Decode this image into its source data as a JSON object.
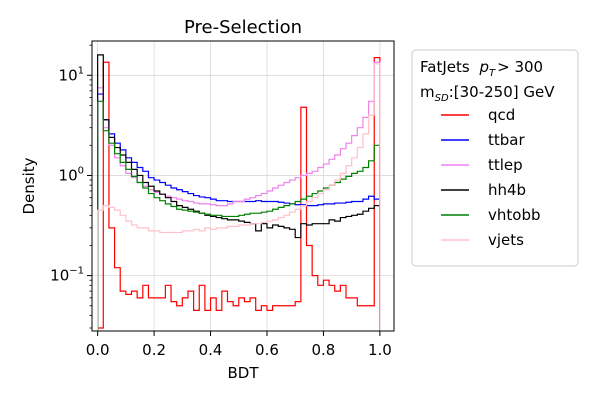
{
  "chart_data": {
    "type": "line",
    "subtype": "step-histogram",
    "title": "Pre-Selection",
    "xlabel": "BDT",
    "ylabel": "Density",
    "xlim": [
      -0.02,
      1.05
    ],
    "ylim": [
      0.028,
      22
    ],
    "yscale": "log",
    "grid": true,
    "x_ticks": [
      0.0,
      0.2,
      0.4,
      0.6,
      0.8,
      1.0
    ],
    "x_tick_labels": [
      "0.0",
      "0.2",
      "0.4",
      "0.6",
      "0.8",
      "1.0"
    ],
    "y_ticks": [
      0.1,
      1,
      10
    ],
    "y_tick_labels": [
      {
        "base": "10",
        "exp": "−1"
      },
      {
        "base": "10",
        "exp": "0"
      },
      {
        "base": "10",
        "exp": "1"
      }
    ],
    "legend": {
      "placement": "outside-right",
      "header_line1": "FatJets",
      "header_line2": "[30-250] GeV",
      "header_pt_condition": "> 300"
    },
    "bin_edges": [
      0.0,
      0.02,
      0.04,
      0.06,
      0.08,
      0.1,
      0.12,
      0.14,
      0.16,
      0.18,
      0.2,
      0.22,
      0.24,
      0.26,
      0.28,
      0.3,
      0.32,
      0.34,
      0.36,
      0.38,
      0.4,
      0.42,
      0.44,
      0.46,
      0.48,
      0.5,
      0.52,
      0.54,
      0.56,
      0.58,
      0.6,
      0.62,
      0.64,
      0.66,
      0.68,
      0.7,
      0.72,
      0.74,
      0.76,
      0.78,
      0.8,
      0.82,
      0.84,
      0.86,
      0.88,
      0.9,
      0.92,
      0.94,
      0.96,
      0.98,
      1.0
    ],
    "series": [
      {
        "name": "qcd",
        "color": "#ff0000",
        "values": [
          0.03,
          13.5,
          0.3,
          0.12,
          0.07,
          0.065,
          0.07,
          0.06,
          0.08,
          0.06,
          0.06,
          0.06,
          0.08,
          0.055,
          0.05,
          0.06,
          0.07,
          0.045,
          0.08,
          0.045,
          0.06,
          0.045,
          0.07,
          0.055,
          0.05,
          0.06,
          0.055,
          0.06,
          0.045,
          0.05,
          0.045,
          0.05,
          0.05,
          0.05,
          0.05,
          0.055,
          4.8,
          0.2,
          0.1,
          0.08,
          0.09,
          0.08,
          0.07,
          0.08,
          0.06,
          0.06,
          0.05,
          0.05,
          0.05,
          15.0
        ]
      },
      {
        "name": "ttbar",
        "color": "#0000ff",
        "values": [
          6.5,
          3.6,
          2.6,
          2.1,
          1.8,
          1.5,
          1.35,
          1.2,
          1.1,
          0.95,
          0.9,
          0.85,
          0.8,
          0.75,
          0.72,
          0.69,
          0.66,
          0.63,
          0.61,
          0.6,
          0.58,
          0.56,
          0.56,
          0.55,
          0.55,
          0.55,
          0.55,
          0.55,
          0.56,
          0.55,
          0.55,
          0.55,
          0.54,
          0.53,
          0.52,
          0.51,
          0.51,
          0.5,
          0.5,
          0.51,
          0.52,
          0.52,
          0.53,
          0.53,
          0.54,
          0.55,
          0.55,
          0.58,
          0.62,
          0.58
        ]
      },
      {
        "name": "ttlep",
        "color": "#ee82ee",
        "values": [
          7.5,
          3.0,
          2.0,
          1.5,
          1.25,
          1.05,
          0.95,
          0.85,
          0.78,
          0.72,
          0.68,
          0.65,
          0.62,
          0.6,
          0.58,
          0.56,
          0.55,
          0.53,
          0.52,
          0.52,
          0.51,
          0.5,
          0.5,
          0.52,
          0.55,
          0.55,
          0.58,
          0.6,
          0.63,
          0.66,
          0.7,
          0.75,
          0.8,
          0.85,
          0.9,
          0.95,
          1.0,
          1.05,
          1.1,
          1.2,
          1.3,
          1.45,
          1.6,
          1.85,
          2.1,
          2.5,
          3.0,
          3.8,
          5.5,
          13.5
        ]
      },
      {
        "name": "hh4b",
        "color": "#000000",
        "values": [
          16.0,
          3.6,
          2.4,
          1.9,
          1.6,
          1.35,
          1.15,
          1.0,
          0.85,
          0.78,
          0.7,
          0.65,
          0.6,
          0.55,
          0.5,
          0.48,
          0.46,
          0.44,
          0.42,
          0.4,
          0.39,
          0.38,
          0.37,
          0.36,
          0.36,
          0.35,
          0.34,
          0.33,
          0.28,
          0.33,
          0.3,
          0.32,
          0.31,
          0.3,
          0.29,
          0.24,
          0.33,
          0.32,
          0.33,
          0.33,
          0.33,
          0.36,
          0.35,
          0.38,
          0.39,
          0.4,
          0.41,
          0.44,
          0.47,
          0.5
        ]
      },
      {
        "name": "vhtobb",
        "color": "#008000",
        "values": [
          5.5,
          2.8,
          2.1,
          1.65,
          1.35,
          1.15,
          0.98,
          0.85,
          0.75,
          0.66,
          0.6,
          0.56,
          0.52,
          0.49,
          0.46,
          0.45,
          0.44,
          0.43,
          0.42,
          0.41,
          0.4,
          0.4,
          0.39,
          0.39,
          0.39,
          0.4,
          0.41,
          0.42,
          0.42,
          0.43,
          0.44,
          0.46,
          0.48,
          0.5,
          0.52,
          0.55,
          0.58,
          0.62,
          0.66,
          0.7,
          0.75,
          0.8,
          0.85,
          0.92,
          0.98,
          1.05,
          1.1,
          1.2,
          1.4,
          2.0
        ]
      },
      {
        "name": "vjets",
        "color": "#ffc0cb",
        "values": [
          0.45,
          0.5,
          0.48,
          0.45,
          0.4,
          0.35,
          0.32,
          0.3,
          0.3,
          0.28,
          0.28,
          0.27,
          0.27,
          0.27,
          0.27,
          0.28,
          0.28,
          0.29,
          0.28,
          0.3,
          0.29,
          0.3,
          0.3,
          0.31,
          0.31,
          0.32,
          0.32,
          0.33,
          0.33,
          0.34,
          0.35,
          0.36,
          0.38,
          0.4,
          0.43,
          0.46,
          0.5,
          0.55,
          0.6,
          0.66,
          0.72,
          0.8,
          0.9,
          1.05,
          1.25,
          1.5,
          1.9,
          2.6,
          4.0,
          13.0
        ]
      }
    ]
  }
}
